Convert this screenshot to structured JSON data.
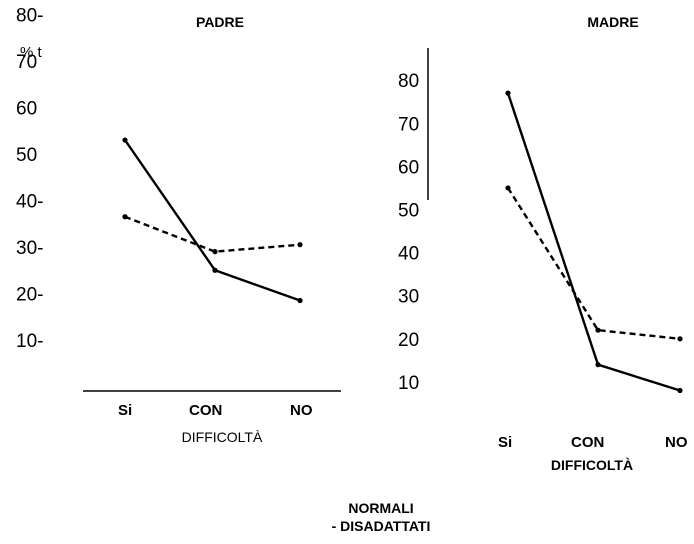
{
  "chart_data": [
    {
      "type": "line",
      "title": "PADRE",
      "ylabel": "% t",
      "xlabel": "DIFFICOLTÀ",
      "categories": [
        "Si",
        "CON",
        "NO"
      ],
      "ylim": [
        0,
        85
      ],
      "y_ticks": [
        "10-",
        "20-",
        "30-",
        "40-",
        "50",
        "60",
        "70",
        "80-"
      ],
      "series": [
        {
          "name": "NORMALI",
          "style": "solid",
          "values": [
            53,
            25,
            18.5
          ]
        },
        {
          "name": "DISADATTATI",
          "style": "dashed",
          "values": [
            36.5,
            29,
            30.5
          ]
        }
      ]
    },
    {
      "type": "line",
      "title": "MADRE",
      "xlabel": "DIFFICOLTÀ",
      "categories": [
        "Si",
        "CON",
        "NO"
      ],
      "ylim": [
        0,
        85
      ],
      "y_ticks": [
        "10",
        "20",
        "30",
        "40",
        "50",
        "60",
        "70",
        "80"
      ],
      "series": [
        {
          "name": "NORMALI",
          "style": "solid",
          "values": [
            77,
            14,
            8
          ]
        },
        {
          "name": "DISADATTATI",
          "style": "dashed",
          "values": [
            55,
            22,
            20
          ]
        }
      ]
    }
  ],
  "legend": {
    "line1": "NORMALI",
    "line2": "- DISADATTATI"
  }
}
